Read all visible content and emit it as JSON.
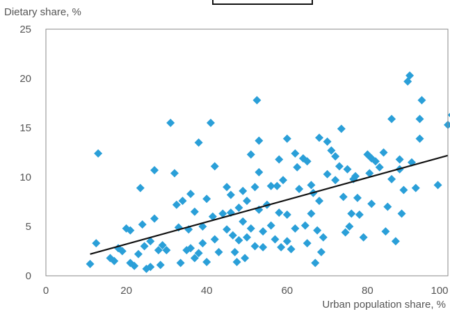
{
  "chart_data": {
    "type": "scatter",
    "xlabel": "Urban population share, %",
    "ylabel": "Dietary share, %",
    "xlim": [
      0,
      100
    ],
    "ylim": [
      0,
      25
    ],
    "x_ticks": [
      "0",
      "20",
      "40",
      "60",
      "80",
      "100"
    ],
    "y_ticks": [
      "0",
      "5",
      "10",
      "15",
      "20",
      "25"
    ],
    "grid": false,
    "legend": "none",
    "colors": {
      "points": "#2a9fd8",
      "trend": "#111111",
      "frame": "#8a8a8a"
    },
    "trendline": {
      "x": [
        11,
        101
      ],
      "y": [
        2.2,
        12.2
      ]
    },
    "points": [
      [
        11,
        1.2
      ],
      [
        12.5,
        3.3
      ],
      [
        13,
        12.4
      ],
      [
        16,
        1.8
      ],
      [
        17,
        1.5
      ],
      [
        18,
        2.8
      ],
      [
        19,
        2.5
      ],
      [
        20,
        4.8
      ],
      [
        21,
        4.6
      ],
      [
        21,
        1.3
      ],
      [
        22,
        1.0
      ],
      [
        23,
        2.2
      ],
      [
        23.5,
        8.9
      ],
      [
        24,
        5.2
      ],
      [
        24.5,
        3.0
      ],
      [
        25,
        0.7
      ],
      [
        26,
        3.5
      ],
      [
        26,
        0.9
      ],
      [
        27,
        10.7
      ],
      [
        27,
        5.8
      ],
      [
        28,
        2.6
      ],
      [
        28.5,
        1.1
      ],
      [
        29,
        3.1
      ],
      [
        30,
        2.6
      ],
      [
        31,
        15.5
      ],
      [
        32,
        10.4
      ],
      [
        32.5,
        7.2
      ],
      [
        33,
        4.9
      ],
      [
        33.5,
        1.3
      ],
      [
        34,
        7.6
      ],
      [
        35,
        2.6
      ],
      [
        35.5,
        4.7
      ],
      [
        36,
        2.8
      ],
      [
        36,
        8.3
      ],
      [
        37,
        1.8
      ],
      [
        37,
        6.5
      ],
      [
        38,
        13.5
      ],
      [
        38,
        2.3
      ],
      [
        39,
        5.0
      ],
      [
        39,
        3.3
      ],
      [
        40,
        1.4
      ],
      [
        40,
        7.8
      ],
      [
        41,
        15.5
      ],
      [
        41.5,
        6.0
      ],
      [
        42,
        11.1
      ],
      [
        42,
        3.7
      ],
      [
        43,
        2.4
      ],
      [
        44,
        6.3
      ],
      [
        45,
        9.0
      ],
      [
        45,
        4.7
      ],
      [
        46,
        8.2
      ],
      [
        46,
        6.4
      ],
      [
        46.5,
        4.1
      ],
      [
        47,
        2.4
      ],
      [
        47.5,
        1.4
      ],
      [
        48,
        6.9
      ],
      [
        48,
        3.6
      ],
      [
        49,
        8.6
      ],
      [
        49,
        5.5
      ],
      [
        49.5,
        1.8
      ],
      [
        50,
        7.6
      ],
      [
        50,
        3.9
      ],
      [
        51,
        12.3
      ],
      [
        51,
        4.8
      ],
      [
        52,
        9.0
      ],
      [
        52,
        3.0
      ],
      [
        52.5,
        17.8
      ],
      [
        53,
        13.7
      ],
      [
        53,
        10.5
      ],
      [
        53,
        6.7
      ],
      [
        54,
        4.5
      ],
      [
        54,
        2.9
      ],
      [
        55,
        7.2
      ],
      [
        56,
        9.1
      ],
      [
        56,
        5.1
      ],
      [
        57,
        3.7
      ],
      [
        57.5,
        9.1
      ],
      [
        58,
        11.8
      ],
      [
        58,
        6.4
      ],
      [
        58.5,
        2.9
      ],
      [
        59,
        9.7
      ],
      [
        60,
        13.9
      ],
      [
        60,
        6.2
      ],
      [
        60,
        3.5
      ],
      [
        61,
        2.7
      ],
      [
        62,
        12.4
      ],
      [
        62,
        4.8
      ],
      [
        62.5,
        11.0
      ],
      [
        63,
        8.8
      ],
      [
        64,
        11.9
      ],
      [
        64.5,
        5.1
      ],
      [
        65,
        11.6
      ],
      [
        65,
        3.3
      ],
      [
        66,
        9.2
      ],
      [
        66,
        6.3
      ],
      [
        66.5,
        8.4
      ],
      [
        67,
        1.3
      ],
      [
        67.5,
        4.6
      ],
      [
        68,
        14.0
      ],
      [
        68,
        7.6
      ],
      [
        68.5,
        2.4
      ],
      [
        69,
        3.9
      ],
      [
        70,
        13.6
      ],
      [
        70,
        10.3
      ],
      [
        71,
        12.7
      ],
      [
        72,
        12.1
      ],
      [
        72,
        9.7
      ],
      [
        73,
        11.1
      ],
      [
        73.5,
        14.9
      ],
      [
        74,
        8.0
      ],
      [
        74.5,
        4.4
      ],
      [
        75,
        10.8
      ],
      [
        75.5,
        5.0
      ],
      [
        76,
        6.3
      ],
      [
        76.5,
        9.8
      ],
      [
        77,
        10.1
      ],
      [
        77.5,
        7.9
      ],
      [
        78,
        6.2
      ],
      [
        79,
        3.9
      ],
      [
        80,
        12.3
      ],
      [
        80.5,
        10.4
      ],
      [
        81,
        7.3
      ],
      [
        81,
        11.9
      ],
      [
        82,
        11.6
      ],
      [
        83,
        11.0
      ],
      [
        84,
        12.5
      ],
      [
        84.5,
        4.5
      ],
      [
        85,
        7.0
      ],
      [
        86,
        15.9
      ],
      [
        86,
        9.8
      ],
      [
        87,
        3.5
      ],
      [
        88,
        11.8
      ],
      [
        88,
        10.8
      ],
      [
        88.5,
        6.3
      ],
      [
        89,
        8.7
      ],
      [
        90,
        19.7
      ],
      [
        90.5,
        20.3
      ],
      [
        91,
        11.5
      ],
      [
        92,
        8.9
      ],
      [
        93,
        15.9
      ],
      [
        93,
        13.9
      ],
      [
        93.5,
        17.8
      ],
      [
        97.5,
        9.2
      ],
      [
        100,
        15.3
      ],
      [
        101,
        16.3
      ]
    ]
  }
}
